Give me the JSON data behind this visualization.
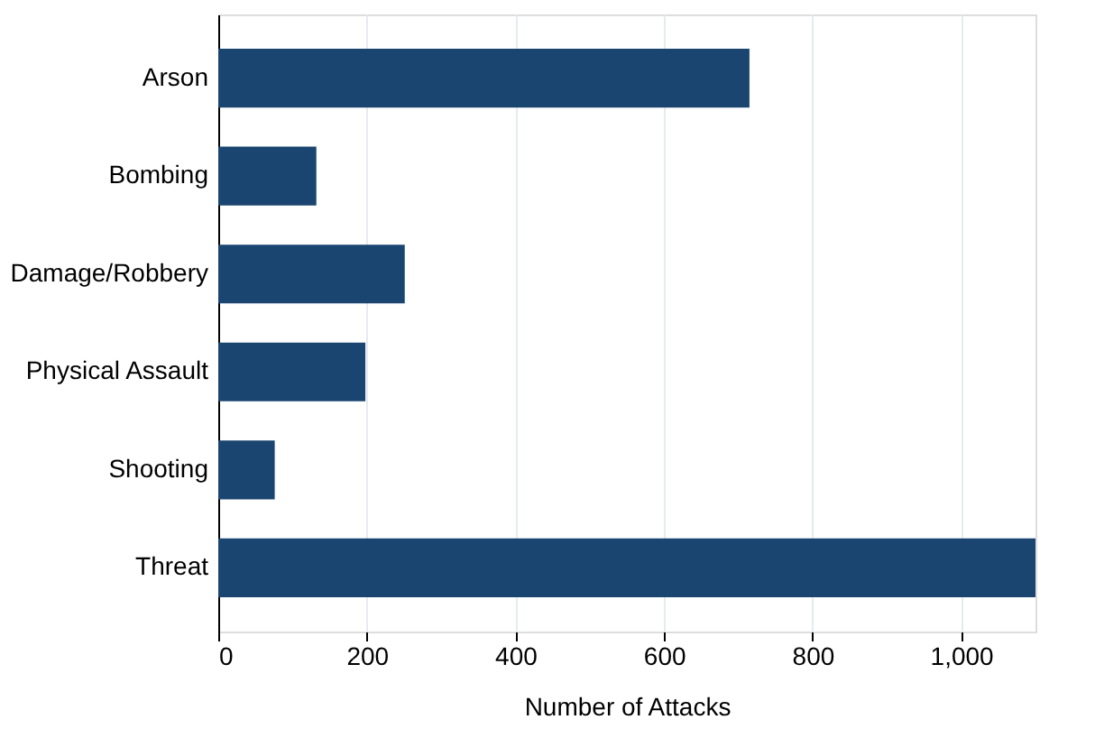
{
  "chart_data": {
    "type": "bar",
    "orientation": "horizontal",
    "xlabel": "Number of Attacks",
    "categories": [
      "Arson",
      "Bombing",
      "Damage/Robbery",
      "Physical Assault",
      "Shooting",
      "Threat"
    ],
    "values": [
      715,
      132,
      251,
      198,
      76,
      1100
    ],
    "color": "#1a4570",
    "xlim": [
      0,
      1100
    ],
    "xticks": [
      0,
      200,
      400,
      600,
      800,
      {
        "value": 1000,
        "label": "1,000"
      }
    ],
    "grid": "x"
  }
}
